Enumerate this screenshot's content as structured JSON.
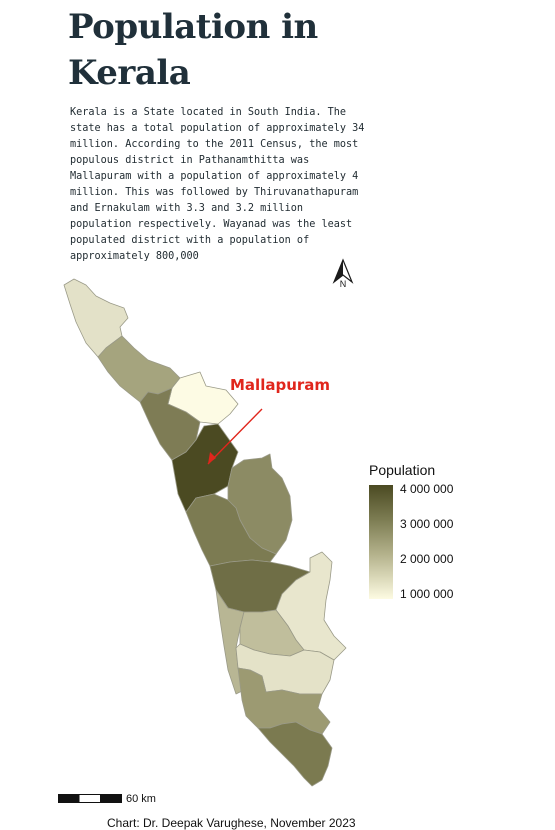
{
  "title": "Population in Kerala",
  "description": "Kerala is a State located in South India. The state has a total population of approximately 34 million. According to the 2011 Census, the most populous district in Pathanamthitta was Mallapuram with a population of approximately 4 million. This was followed by Thiruvanathapuram and Ernakulam with 3.3 and 3.2 million population respectively. Wayanad was the least populated district with a population of approximately 800,000",
  "north_arrow_label": "N",
  "callout_label": "Mallapuram",
  "legend": {
    "title": "Population",
    "labels": [
      "4 000 000",
      "3 000 000",
      "2 000 000",
      "1 000 000"
    ],
    "colors": [
      "#4b4a22",
      "#7c7c52",
      "#b6b48e",
      "#fdfbe2"
    ]
  },
  "scale_bar_label": "60 km",
  "credit": "Chart: Dr. Deepak Varughese, November 2023",
  "colors": {
    "highlight_arrow": "#e0261c",
    "border": "#9a9a88"
  }
}
